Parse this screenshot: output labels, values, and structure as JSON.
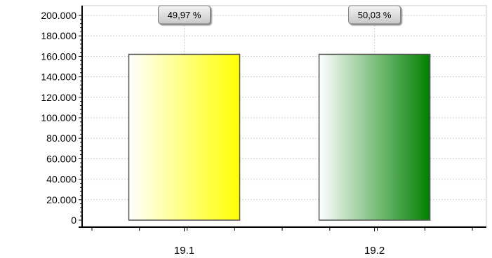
{
  "chart_data": {
    "type": "bar",
    "categories": [
      "19.1",
      "19.2"
    ],
    "values": [
      162000,
      162000
    ],
    "percent_labels": [
      "49,97 %",
      "50,03 %"
    ],
    "yticks": [
      "0",
      "20.000",
      "40.000",
      "60.000",
      "80.000",
      "100.000",
      "120.000",
      "140.000",
      "160.000",
      "180.000",
      "200.000"
    ],
    "ylim": [
      0,
      200000
    ],
    "grid": true,
    "title": "",
    "xlabel": "",
    "ylabel": "",
    "bar_colors": [
      "#ffff00",
      "#008000"
    ]
  }
}
